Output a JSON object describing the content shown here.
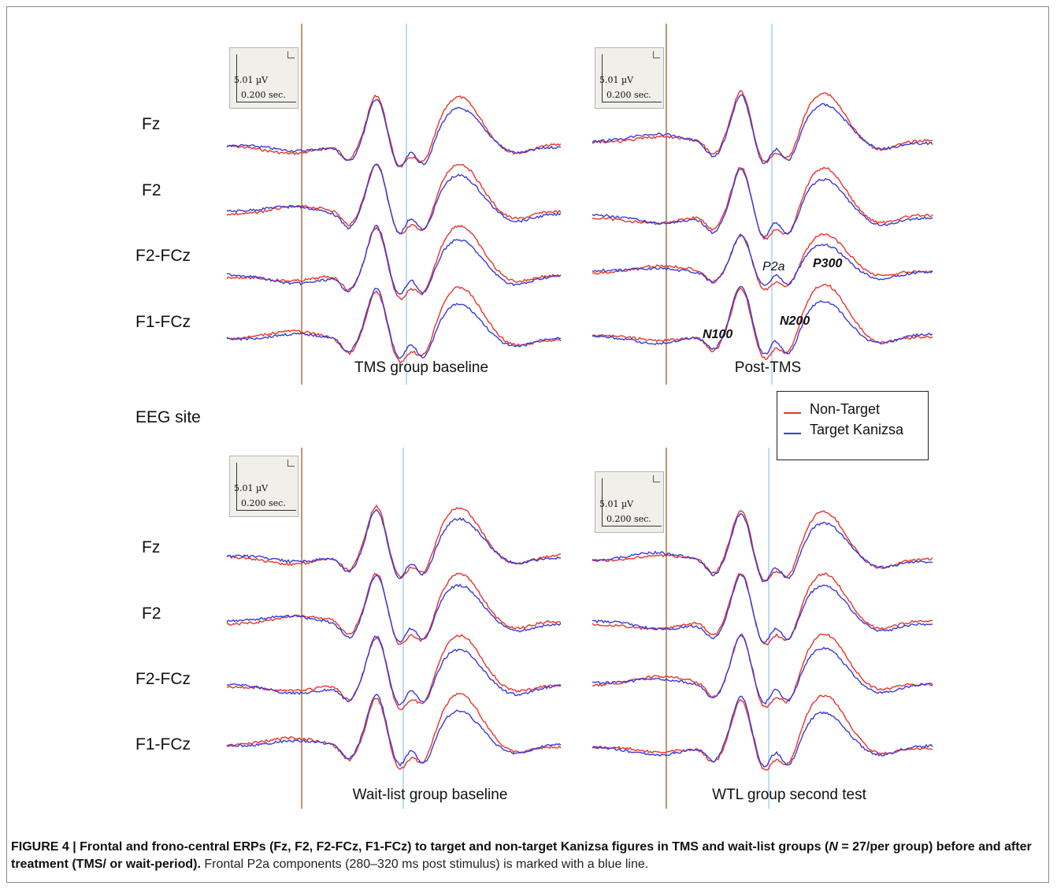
{
  "eeg_site_label": "EEG site",
  "site_labels": [
    "Fz",
    "F2",
    "F2-FCz",
    "F1-FCz"
  ],
  "legend": {
    "items": [
      {
        "label": "Non-Target",
        "color": "#e8352a"
      },
      {
        "label": "Target Kanizsa",
        "color": "#3a3ad6"
      }
    ]
  },
  "colors": {
    "non_target": "#e8352a",
    "target": "#3a3ad6",
    "stimulus_onset_line": "#a5743d",
    "p2a_marker_line": "#a8d0f0"
  },
  "panels": [
    {
      "title": "TMS group baseline",
      "scale": {
        "amplitude": "5.01 µV",
        "time": "0.200 sec."
      }
    },
    {
      "title": "Post-TMS",
      "scale": {
        "amplitude": "5.01 µV",
        "time": "0.200 sec."
      },
      "annotations": {
        "n100": "N100",
        "p2a": "P2a",
        "n200": "N200",
        "p300": "P300"
      }
    },
    {
      "title": "Wait-list group baseline",
      "scale": {
        "amplitude": "5.01 µV",
        "time": "0.200 sec."
      }
    },
    {
      "title": "WTL group second test",
      "scale": {
        "amplitude": "5.01 µV",
        "time": "0.200 sec."
      }
    }
  ],
  "caption": {
    "bold_1": "FIGURE 4 | Frontal and frono-central ERPs (Fz, F2, F2-FCz, F1-FCz) to target and non-target Kanizsa figures in TMS and wait-list groups (",
    "bold_italic_n": "N",
    "bold_2": " = 27/per group) before and after treatment (TMS/ or wait-period).",
    "normal": " Frontal P2a components (280–320 ms post stimulus) is marked with a blue line."
  }
}
